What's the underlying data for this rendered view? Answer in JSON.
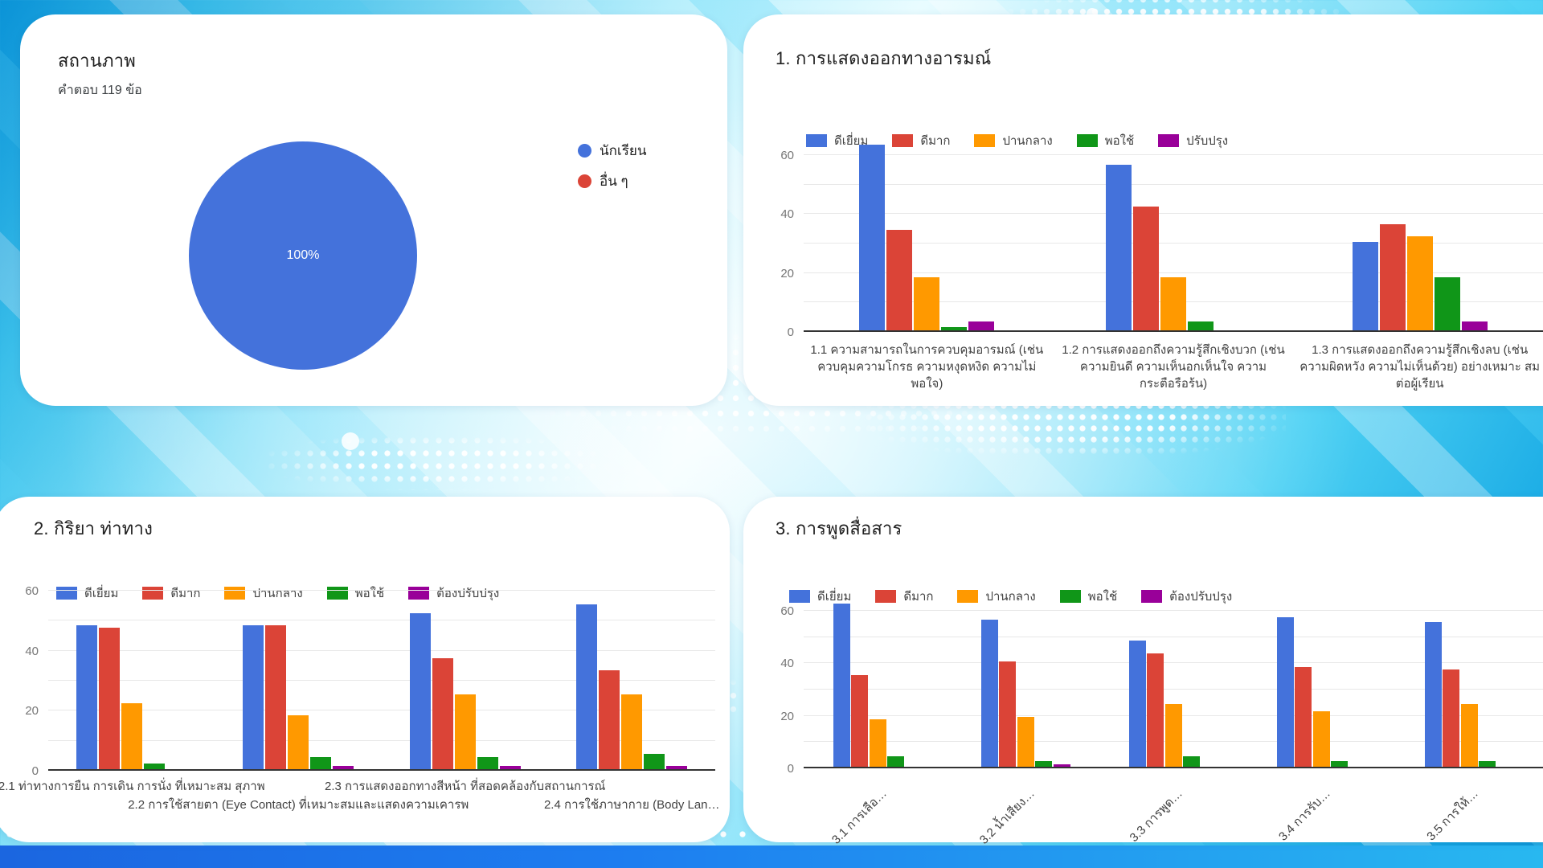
{
  "palette": {
    "series_colors": [
      "#4472DB",
      "#DB4437",
      "#FF9900",
      "#109618",
      "#990099"
    ],
    "pie_legend_colors": [
      "#4472DB",
      "#DB4437"
    ],
    "card_background": "#ffffff",
    "title_color": "#212121",
    "axis_label_color": "#757575",
    "category_label_color": "#424242",
    "background_cyan": "#2bc1ef",
    "bottom_bar_blue": "#1b66e0"
  },
  "chart_data": [
    {
      "type": "pie",
      "title": "สถานภาพ",
      "subtitle": "คำตอบ 119 ข้อ",
      "labels": [
        "นักเรียน",
        "อื่น ๆ"
      ],
      "values": [
        100,
        0
      ],
      "unit": "%",
      "center_label": "100%",
      "legend_position": "right"
    },
    {
      "type": "bar",
      "title": "1. การแสดงออกทางอารมณ์",
      "categories": [
        "1.1 ความสามารถในการควบคุมอารมณ์ (เช่น ควบคุมความโกรธ ความหงุดหงิด ความไม่ พอใจ)",
        "1.2 การแสดงออกถึงความรู้สึกเชิงบวก (เช่น ความยินดี ความเห็นอกเห็นใจ ความ กระตือรือร้น)",
        "1.3 การแสดงออกถึงความรู้สึกเชิงลบ (เช่น ความผิดหวัง ความไม่เห็นด้วย) อย่างเหมาะ สมต่อผู้เรียน"
      ],
      "series": [
        {
          "name": "ดีเยี่ยม",
          "values": [
            63,
            56,
            30
          ]
        },
        {
          "name": "ดีมาก",
          "values": [
            34,
            42,
            36
          ]
        },
        {
          "name": "ปานกลาง",
          "values": [
            18,
            18,
            32
          ]
        },
        {
          "name": "พอใช้",
          "values": [
            1,
            3,
            18
          ]
        },
        {
          "name": "ปรับปรุง",
          "values": [
            3,
            0,
            3
          ]
        }
      ],
      "xlabel": "",
      "ylabel": "",
      "yticks": [
        0,
        20,
        40,
        60
      ],
      "gridline_step": 10,
      "ylim": [
        0,
        65
      ],
      "grid": true,
      "legend_position": "top"
    },
    {
      "type": "bar",
      "title": "2. กิริยา ท่าทาง",
      "categories": [
        "2.1 ท่าทางการยืน การเดิน การนั่ง ที่เหมาะสม สุภาพ",
        "2.2 การใช้สายตา (Eye Contact) ที่เหมาะสมและแสดงความเคารพ",
        "2.3 การแสดงออกทางสีหน้า ที่สอดคล้องกับสถานการณ์",
        "2.4 การใช้ภาษากาย (Body Lan…"
      ],
      "series": [
        {
          "name": "ดีเยี่ยม",
          "values": [
            48,
            48,
            52,
            55
          ]
        },
        {
          "name": "ดีมาก",
          "values": [
            47,
            48,
            37,
            33
          ]
        },
        {
          "name": "ปานกลาง",
          "values": [
            22,
            18,
            25,
            25
          ]
        },
        {
          "name": "พอใช้",
          "values": [
            2,
            4,
            4,
            5
          ]
        },
        {
          "name": "ต้องปรับปรุง",
          "values": [
            0,
            1,
            1,
            1
          ]
        }
      ],
      "xlabel": "",
      "ylabel": "",
      "yticks": [
        0,
        20,
        40,
        60
      ],
      "gridline_step": 10,
      "ylim": [
        0,
        62
      ],
      "grid": true,
      "legend_position": "top"
    },
    {
      "type": "bar",
      "title": "3. การพูดสื่อสาร",
      "categories": [
        "3.1 การเลือ…",
        "3.2 น้ำเสียง…",
        "3.3 การพูด…",
        "3.4 การรับ…",
        "3.5 การให้…"
      ],
      "series": [
        {
          "name": "ดีเยี่ยม",
          "values": [
            62,
            56,
            48,
            57,
            55
          ]
        },
        {
          "name": "ดีมาก",
          "values": [
            35,
            40,
            43,
            38,
            37
          ]
        },
        {
          "name": "ปานกลาง",
          "values": [
            18,
            19,
            24,
            21,
            24
          ]
        },
        {
          "name": "พอใช้",
          "values": [
            4,
            2,
            4,
            2,
            2
          ]
        },
        {
          "name": "ต้องปรับปรุง",
          "values": [
            0,
            1,
            0,
            0,
            0
          ]
        }
      ],
      "xlabel": "",
      "ylabel": "",
      "yticks": [
        0,
        20,
        40,
        60
      ],
      "gridline_step": 10,
      "ylim": [
        0,
        64
      ],
      "grid": true,
      "legend_position": "top"
    }
  ]
}
